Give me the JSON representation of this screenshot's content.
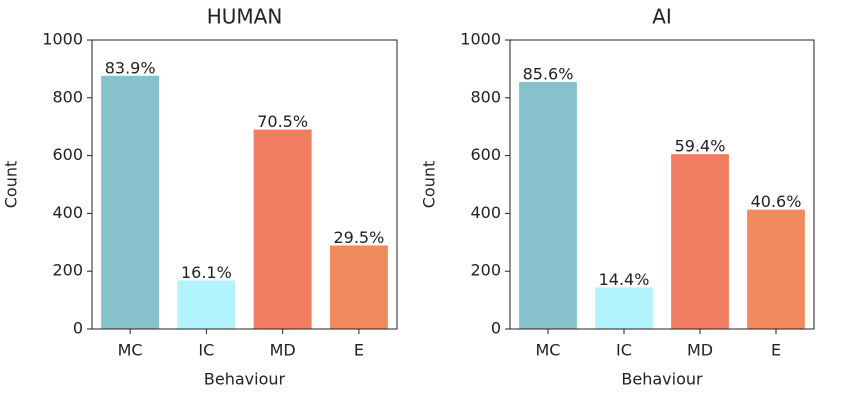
{
  "chart_data": [
    {
      "type": "bar",
      "title": "HUMAN",
      "xlabel": "Behaviour",
      "ylabel": "Count",
      "categories": [
        "MC",
        "IC",
        "MD",
        "E"
      ],
      "values": [
        876,
        168,
        690,
        289
      ],
      "annotations": [
        "83.9%",
        "16.1%",
        "70.5%",
        "29.5%"
      ],
      "colors": [
        "#86c1cc",
        "#b3f2ff",
        "#f07c61",
        "#f08a5d"
      ],
      "ylim": [
        0,
        1000
      ],
      "yticks": [
        0,
        200,
        400,
        600,
        800,
        1000
      ]
    },
    {
      "type": "bar",
      "title": "AI",
      "xlabel": "Behaviour",
      "ylabel": "Count",
      "categories": [
        "MC",
        "IC",
        "MD",
        "E"
      ],
      "values": [
        855,
        144,
        605,
        413
      ],
      "annotations": [
        "85.6%",
        "14.4%",
        "59.4%",
        "40.6%"
      ],
      "colors": [
        "#86c1cc",
        "#b3f2ff",
        "#f07c61",
        "#f08a5d"
      ],
      "ylim": [
        0,
        1000
      ],
      "yticks": [
        0,
        200,
        400,
        600,
        800,
        1000
      ]
    }
  ]
}
